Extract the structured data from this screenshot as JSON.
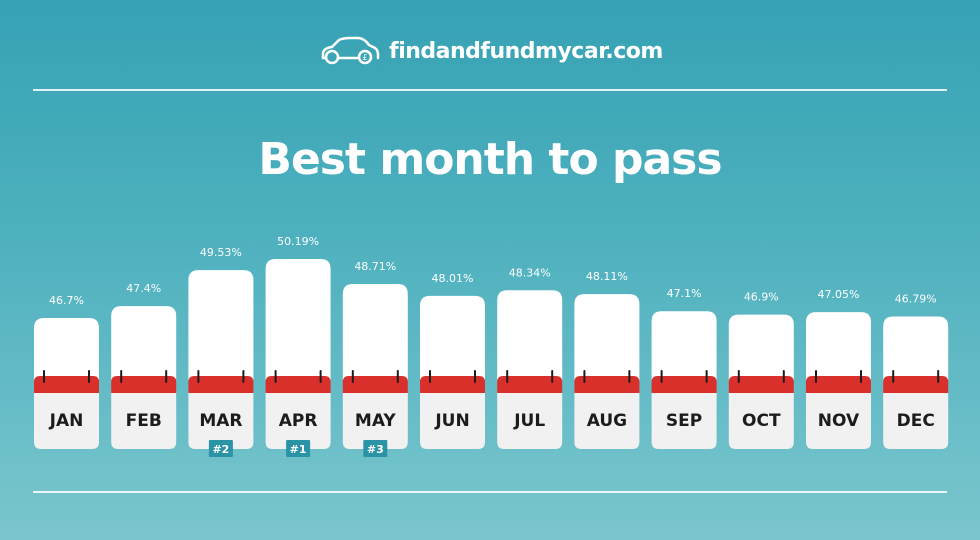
{
  "brand": {
    "name": "findandfundmycar.com",
    "logo_icon": "car-outline-icon"
  },
  "colors": {
    "background_top": "#36a2b4",
    "background_bottom": "#7ac6cd",
    "calendar_band": "#d9302c",
    "calendar_bottom": "#f1f1f1",
    "calendar_top": "#ffffff",
    "rank_badge": "#2a93a6"
  },
  "chart_data": {
    "type": "bar",
    "title": "Best month to pass",
    "xlabel": "",
    "ylabel": "",
    "grid": false,
    "categories": [
      "JAN",
      "FEB",
      "MAR",
      "APR",
      "MAY",
      "JUN",
      "JUL",
      "AUG",
      "SEP",
      "OCT",
      "NOV",
      "DEC"
    ],
    "values": [
      46.7,
      47.4,
      49.53,
      50.19,
      48.71,
      48.01,
      48.34,
      48.11,
      47.1,
      46.9,
      47.05,
      46.79
    ],
    "value_labels": [
      "46.7%",
      "47.4%",
      "49.53%",
      "50.19%",
      "48.71%",
      "48.01%",
      "48.34%",
      "48.11%",
      "47.1%",
      "46.9%",
      "47.05%",
      "46.79%"
    ],
    "ranks": [
      {
        "category": "MAR",
        "label": "#2"
      },
      {
        "category": "APR",
        "label": "#1"
      },
      {
        "category": "MAY",
        "label": "#3"
      }
    ]
  }
}
